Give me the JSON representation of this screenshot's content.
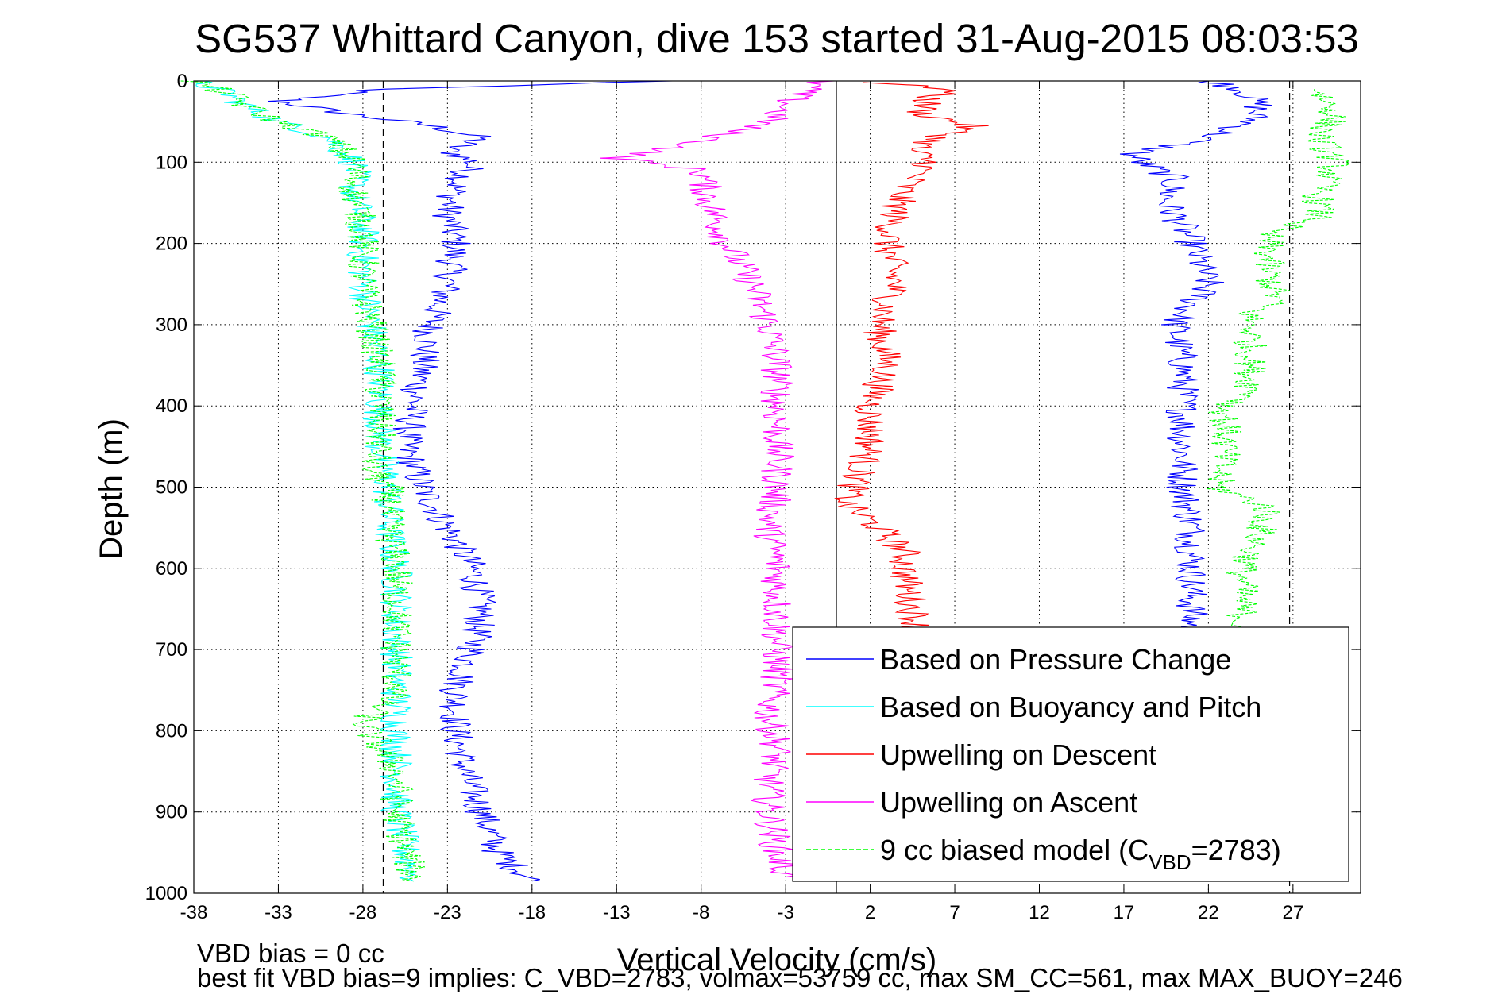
{
  "chart_data": {
    "type": "line",
    "title": "SG537 Whittard Canyon, dive 153 started 31-Aug-2015 08:03:53",
    "xlabel": "Vertical Velocity (cm/s)",
    "ylabel": "Depth (m)",
    "xlim": [
      -38,
      31
    ],
    "ylim": [
      1000,
      0
    ],
    "xticks": [
      "-38",
      "-33",
      "-28",
      "-23",
      "-18",
      "-13",
      "-8",
      "-3",
      "2",
      "7",
      "12",
      "17",
      "22",
      "27"
    ],
    "yticks": [
      "0",
      "100",
      "200",
      "300",
      "400",
      "500",
      "600",
      "700",
      "800",
      "900",
      "1000"
    ],
    "grid": true,
    "legend_position": "bottom-right",
    "reference_lines": {
      "zero": 0,
      "dashed": [
        -26.8,
        26.8
      ]
    },
    "series": [
      {
        "name": "Based on Pressure Change",
        "color": "#0000ff",
        "depth": [
          0,
          10,
          25,
          40,
          55,
          70,
          85,
          100,
          130,
          160,
          200,
          250,
          300,
          350,
          400,
          450,
          500,
          550,
          600,
          650,
          700,
          750,
          800,
          850,
          900,
          950,
          985
        ],
        "values": [
          -10,
          -27,
          -33,
          -29,
          -24,
          -21,
          -23,
          -21.5,
          -22.5,
          -23,
          -22.5,
          -23,
          -24,
          -24.5,
          -25,
          -25.5,
          -24.5,
          -23,
          -21.5,
          -21,
          -21.5,
          -22.5,
          -22.5,
          -22,
          -21,
          -20,
          -18
        ]
      },
      {
        "name": "Based on Pressure Change",
        "color": "#0000ff",
        "depth": [
          0,
          10,
          30,
          50,
          70,
          90,
          100,
          120,
          150,
          180,
          200,
          250,
          300,
          350,
          400,
          450,
          500,
          550,
          600,
          650,
          690
        ],
        "values": [
          22,
          24,
          25,
          24.5,
          22,
          17.5,
          18,
          20,
          19.5,
          20.5,
          21,
          22,
          20,
          20.5,
          20.5,
          20.5,
          20.5,
          21,
          21,
          21,
          21
        ]
      },
      {
        "name": "Based on Buoyancy and Pitch",
        "color": "#00ffff",
        "depth": [
          0,
          15,
          30,
          50,
          70,
          100,
          140,
          180,
          250,
          300,
          350,
          400,
          450,
          500,
          550,
          600,
          650,
          700,
          750,
          800,
          850,
          900,
          950,
          985
        ],
        "values": [
          -38,
          -36,
          -35,
          -33,
          -30,
          -28.5,
          -28.5,
          -28,
          -28,
          -27.5,
          -27,
          -27,
          -27,
          -26.5,
          -26.5,
          -26,
          -26,
          -26,
          -26,
          -26,
          -26,
          -26,
          -25.5,
          -25
        ]
      },
      {
        "name": "Upwelling on Descent",
        "color": "#ff0000",
        "depth": [
          2,
          10,
          20,
          40,
          55,
          70,
          85,
          100,
          130,
          160,
          200,
          250,
          300,
          350,
          400,
          450,
          500,
          520,
          550,
          580,
          600,
          650,
          690
        ],
        "values": [
          2,
          7,
          5.5,
          5,
          8,
          6,
          4.5,
          5.5,
          4,
          3.5,
          3,
          3.5,
          2.5,
          3,
          2,
          2,
          1,
          0.5,
          2.5,
          4,
          4,
          4.5,
          5
        ]
      },
      {
        "name": "Upwelling on Ascent",
        "color": "#ff00ff",
        "depth": [
          0,
          20,
          50,
          80,
          95,
          110,
          150,
          200,
          250,
          300,
          350,
          400,
          450,
          500,
          550,
          600,
          650,
          700,
          730,
          780,
          820,
          860,
          900,
          950,
          980
        ],
        "values": [
          -1,
          -2.5,
          -4,
          -9,
          -13,
          -8,
          -7.5,
          -6.5,
          -5,
          -4,
          -3.5,
          -3.5,
          -3.5,
          -3.5,
          -4,
          -3.5,
          -3.5,
          -3.5,
          -3.5,
          -4,
          -3.5,
          -4,
          -4,
          -3.5,
          -3
        ]
      },
      {
        "name": "9 cc biased model (C_VBD=2783)",
        "color": "#00ff00",
        "depth": [
          0,
          15,
          30,
          50,
          70,
          100,
          140,
          180,
          250,
          300,
          350,
          400,
          450,
          480,
          500,
          550,
          600,
          650,
          700,
          750,
          790,
          850,
          900,
          950,
          985
        ],
        "values": [
          -38,
          -36,
          -35,
          -33,
          -30,
          -28.5,
          -28.5,
          -28,
          -28,
          -27.5,
          -27,
          -27,
          -27,
          -27.5,
          -26.5,
          -26.5,
          -26,
          -26,
          -26,
          -26,
          -28,
          -26,
          -26,
          -25.5,
          -25
        ]
      },
      {
        "name": "9 cc biased model (C_VBD=2783)",
        "color": "#00ff00",
        "depth": [
          10,
          40,
          70,
          100,
          140,
          170,
          185,
          230,
          270,
          285,
          300,
          350,
          390,
          400,
          450,
          500,
          525,
          560,
          600,
          650,
          680
        ],
        "values": [
          28.5,
          29.5,
          28.5,
          29.5,
          28.5,
          28.5,
          25.5,
          25.5,
          26,
          24.5,
          24.5,
          24.5,
          24.5,
          23,
          23,
          22.5,
          25.5,
          25,
          24,
          24,
          24
        ]
      }
    ],
    "legend": [
      {
        "label": "Based on Pressure Change",
        "color": "#0000ff",
        "style": "solid"
      },
      {
        "label": "Based on Buoyancy and Pitch",
        "color": "#00ffff",
        "style": "solid"
      },
      {
        "label": "Upwelling on Descent",
        "color": "#ff0000",
        "style": "solid"
      },
      {
        "label": "Upwelling on Ascent",
        "color": "#ff00ff",
        "style": "solid"
      },
      {
        "label": "9 cc biased model (C",
        "sub": "VBD",
        "tail": "=2783)",
        "color": "#00ff00",
        "style": "dashed"
      }
    ],
    "annotations": [
      "VBD bias = 0 cc",
      "best fit VBD bias=9 implies: C_VBD=2783, volmax=53759 cc, max SM_CC=561, max MAX_BUOY=246"
    ]
  }
}
